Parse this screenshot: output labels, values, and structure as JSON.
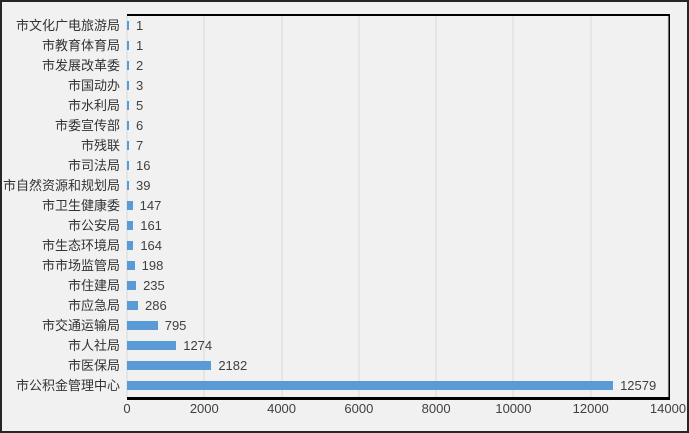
{
  "chart_data": {
    "type": "bar",
    "orientation": "horizontal",
    "title": "",
    "xlabel": "",
    "ylabel": "",
    "categories": [
      "市文化广电旅游局",
      "市教育体育局",
      "市发展改革委",
      "市国动办",
      "市水利局",
      "市委宣传部",
      "市残联",
      "市司法局",
      "市自然资源和规划局",
      "市卫生健康委",
      "市公安局",
      "市生态环境局",
      "市市场监管局",
      "市住建局",
      "市应急局",
      "市交通运输局",
      "市人社局",
      "市医保局",
      "市公积金管理中心"
    ],
    "values": [
      1,
      1,
      2,
      3,
      5,
      6,
      7,
      16,
      39,
      147,
      161,
      164,
      198,
      235,
      286,
      795,
      1274,
      2182,
      12579
    ],
    "data_labels_visible": true,
    "xlim": [
      0,
      14000
    ],
    "x_ticks": [
      0,
      2000,
      4000,
      6000,
      8000,
      10000,
      12000,
      14000
    ],
    "grid": "vertical",
    "legend_position": "none",
    "colors": {
      "bar": "#5b9bd5",
      "gridline": "#d9d9d9",
      "plot_border": "#000000",
      "axis_text": "#404040",
      "category_text": "#333333",
      "background": "#f1f1f1",
      "outer_border": "#262626"
    }
  }
}
